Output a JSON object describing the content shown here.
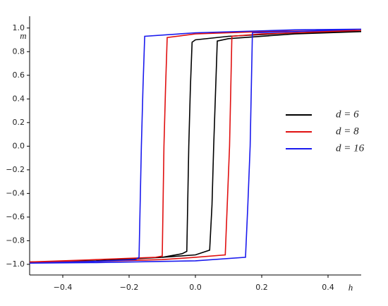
{
  "chart_data": {
    "type": "line",
    "x_label": "h",
    "y_label": "m",
    "xlim": [
      -0.5,
      0.5
    ],
    "ylim": [
      -1.09,
      1.1
    ],
    "xticks": [
      {
        "value": -0.4,
        "label": "−0.4"
      },
      {
        "value": -0.2,
        "label": "−0.2"
      },
      {
        "value": 0,
        "label": "0.0"
      },
      0.2,
      0.4
    ],
    "yticks": [
      {
        "value": -1,
        "label": "−1.0"
      },
      {
        "value": -0.8,
        "label": "−0.8"
      },
      {
        "value": -0.6,
        "label": "−0.6"
      },
      {
        "value": -0.4,
        "label": "−0.4"
      },
      {
        "value": -0.2,
        "label": "−0.2"
      },
      {
        "value": 0,
        "label": "0.0"
      },
      0.2,
      0.4,
      0.6,
      0.8,
      {
        "value": 1,
        "label": "1.0"
      }
    ],
    "legend_position": "right",
    "series": [
      {
        "name": "d = 6",
        "color": "#000000",
        "x": [
          -0.5,
          -0.3,
          -0.1,
          0.0,
          0.043,
          0.05,
          0.055,
          0.066,
          0.1,
          0.3,
          0.5,
          0.3,
          0.1,
          0.0,
          -0.01,
          -0.015,
          -0.02,
          -0.026,
          -0.04,
          -0.1,
          -0.3,
          -0.5
        ],
        "y": [
          -0.98,
          -0.97,
          -0.94,
          -0.92,
          -0.88,
          -0.5,
          0.0,
          0.89,
          0.91,
          0.95,
          0.97,
          0.96,
          0.93,
          0.9,
          0.88,
          0.5,
          0.0,
          -0.89,
          -0.91,
          -0.94,
          -0.97,
          -0.98
        ]
      },
      {
        "name": "d = 8",
        "color": "#e01010",
        "x": [
          -0.5,
          -0.3,
          -0.1,
          0.0,
          0.09,
          0.096,
          0.103,
          0.11,
          0.2,
          0.5,
          0.2,
          0.0,
          -0.085,
          -0.09,
          -0.095,
          -0.1,
          -0.12,
          -0.3,
          -0.5
        ],
        "y": [
          -0.98,
          -0.975,
          -0.96,
          -0.94,
          -0.92,
          -0.5,
          0.0,
          0.93,
          0.95,
          0.98,
          0.97,
          0.95,
          0.92,
          0.5,
          0.0,
          -0.93,
          -0.94,
          -0.96,
          -0.98
        ]
      },
      {
        "name": "d = 16",
        "color": "#1a1aee",
        "x": [
          -0.5,
          -0.3,
          0.0,
          0.151,
          0.158,
          0.165,
          0.172,
          0.3,
          0.5,
          0.3,
          0.0,
          -0.153,
          -0.158,
          -0.163,
          -0.17,
          -0.18,
          -0.3,
          -0.5
        ],
        "y": [
          -0.99,
          -0.985,
          -0.97,
          -0.94,
          -0.5,
          0.0,
          0.96,
          0.97,
          0.99,
          0.985,
          0.96,
          0.93,
          0.5,
          0.0,
          -0.94,
          -0.96,
          -0.975,
          -0.99
        ]
      }
    ]
  }
}
